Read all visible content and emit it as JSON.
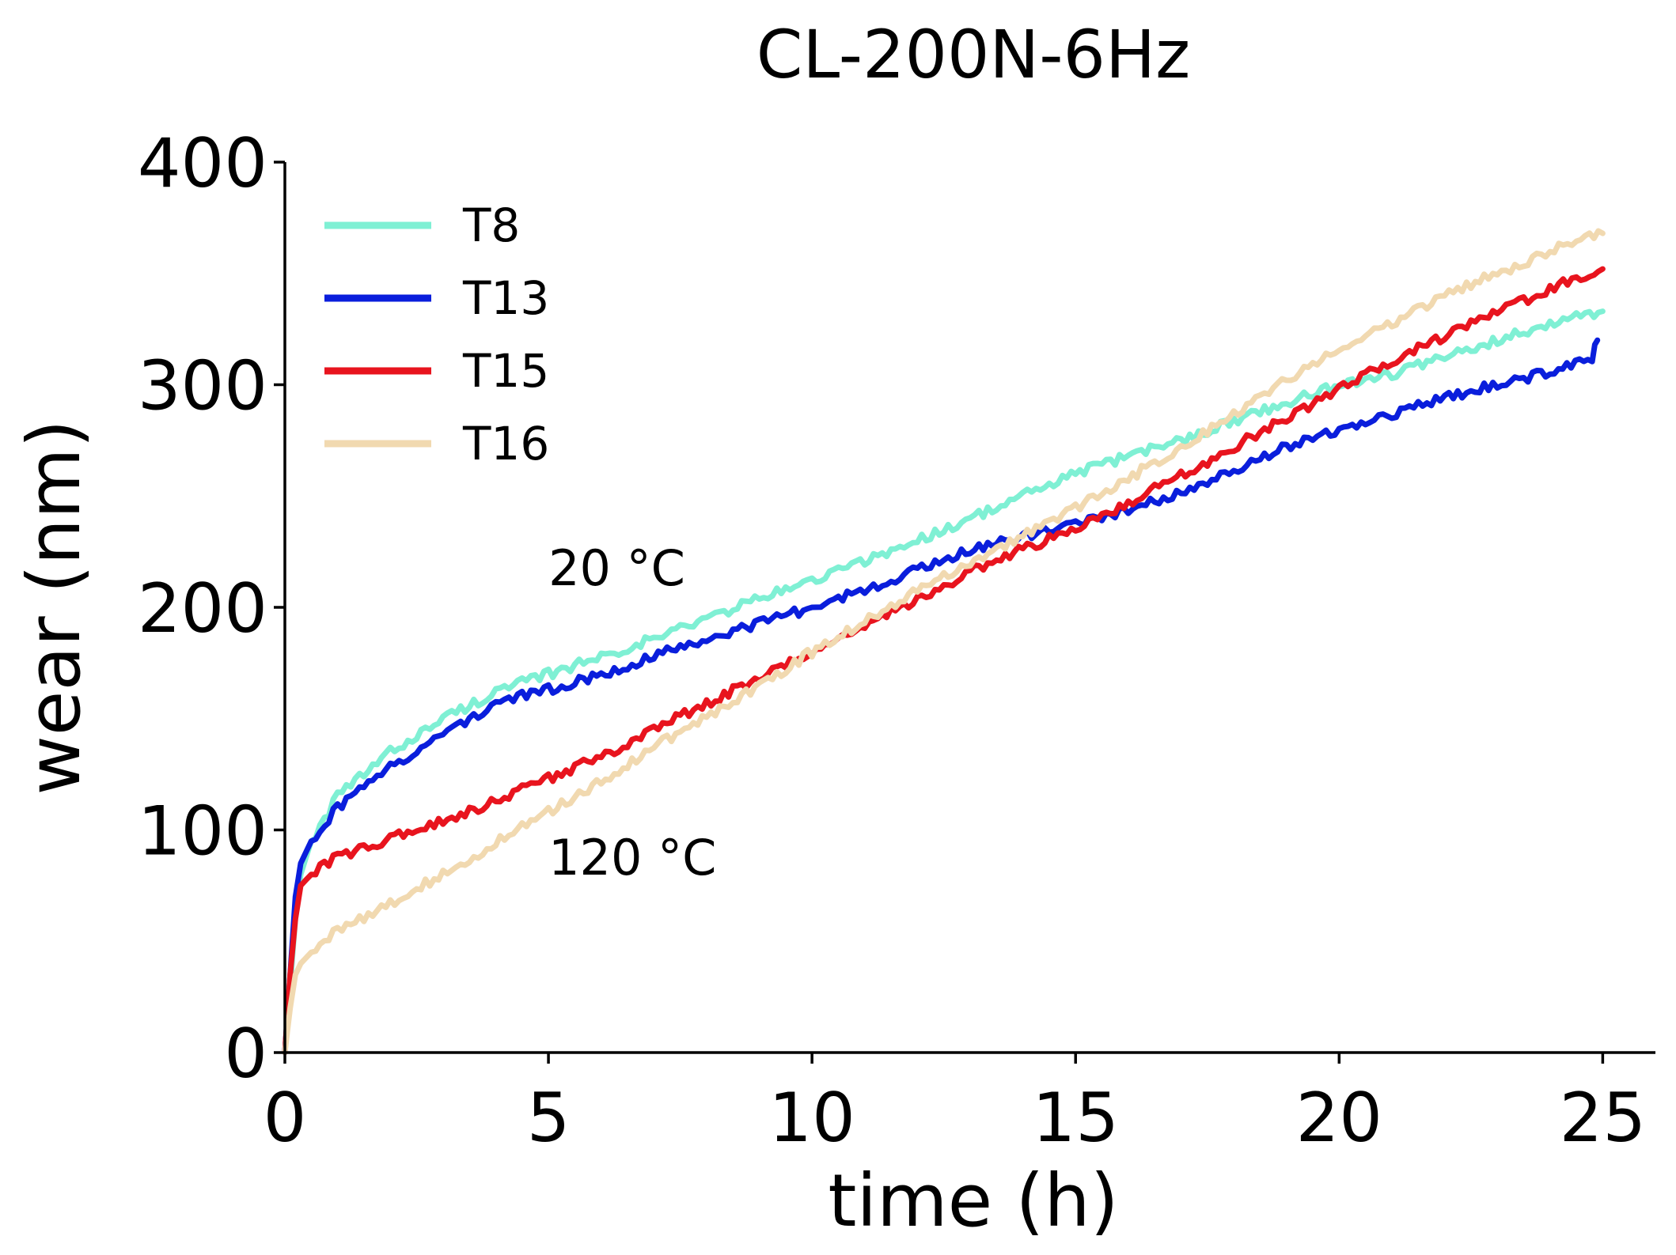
{
  "chart_data": {
    "type": "line",
    "title": "CL-200N-6Hz",
    "xlabel": "time (h)",
    "ylabel": "wear (nm)",
    "xlim": [
      0,
      26
    ],
    "ylim": [
      0,
      400
    ],
    "xticks": [
      0,
      5,
      10,
      15,
      20,
      25
    ],
    "yticks": [
      0,
      100,
      200,
      300,
      400
    ],
    "xtick_labels": [
      "0",
      "5",
      "10",
      "15",
      "20",
      "25"
    ],
    "ytick_labels": [
      "0",
      "100",
      "200",
      "300",
      "400"
    ],
    "legend_position": "top-left",
    "annotations": [
      {
        "text": "20 °C",
        "x": 5.0,
        "y": 210
      },
      {
        "text": "120 °C",
        "x": 5.0,
        "y": 80
      }
    ],
    "series": [
      {
        "name": "T8",
        "color": "#7FF0D4",
        "x": [
          0,
          0.1,
          0.2,
          0.3,
          0.5,
          1,
          2,
          3,
          4,
          5,
          6,
          7,
          8,
          9,
          10,
          11,
          12,
          13,
          14,
          15,
          16,
          17,
          18,
          19,
          20,
          21,
          22,
          23,
          24,
          25
        ],
        "y": [
          0,
          30,
          60,
          80,
          95,
          115,
          135,
          150,
          162,
          170,
          178,
          186,
          195,
          204,
          212,
          221,
          230,
          240,
          250,
          260,
          268,
          275,
          284,
          292,
          300,
          305,
          312,
          320,
          328,
          333
        ]
      },
      {
        "name": "T13",
        "color": "#0A1EDC",
        "x": [
          0,
          0.1,
          0.2,
          0.3,
          0.5,
          1,
          2,
          3,
          4,
          5,
          6,
          7,
          8,
          9,
          10,
          11,
          12,
          13,
          14,
          15,
          16,
          17,
          18,
          19,
          20,
          21,
          22,
          23,
          24,
          24.8,
          24.9
        ],
        "y": [
          0,
          35,
          70,
          85,
          95,
          110,
          128,
          143,
          157,
          163,
          170,
          178,
          186,
          193,
          200,
          208,
          217,
          226,
          232,
          237,
          244,
          252,
          262,
          272,
          280,
          287,
          294,
          300,
          306,
          312,
          320
        ]
      },
      {
        "name": "T15",
        "color": "#E8141E",
        "x": [
          0,
          0.1,
          0.2,
          0.3,
          0.5,
          1,
          2,
          3,
          4,
          5,
          6,
          7,
          8,
          9,
          10,
          11,
          12,
          13,
          14,
          15,
          16,
          17,
          18,
          19,
          20,
          21,
          22,
          23,
          24,
          25
        ],
        "y": [
          0,
          35,
          60,
          75,
          80,
          88,
          96,
          104,
          113,
          123,
          133,
          145,
          157,
          168,
          180,
          192,
          203,
          216,
          226,
          235,
          247,
          259,
          272,
          285,
          298,
          311,
          322,
          333,
          343,
          352
        ]
      },
      {
        "name": "T16",
        "color": "#F1D9B0",
        "x": [
          0,
          0.1,
          0.2,
          0.3,
          0.5,
          1,
          2,
          3,
          4,
          5,
          6,
          7,
          8,
          9,
          10,
          11,
          12,
          13,
          14,
          15,
          16,
          17,
          18,
          19,
          20,
          21,
          22,
          23,
          24,
          25
        ],
        "y": [
          0,
          20,
          35,
          40,
          45,
          55,
          67,
          80,
          94,
          108,
          122,
          137,
          151,
          165,
          180,
          194,
          208,
          220,
          232,
          245,
          258,
          272,
          287,
          302,
          317,
          328,
          340,
          350,
          360,
          368
        ]
      }
    ]
  }
}
